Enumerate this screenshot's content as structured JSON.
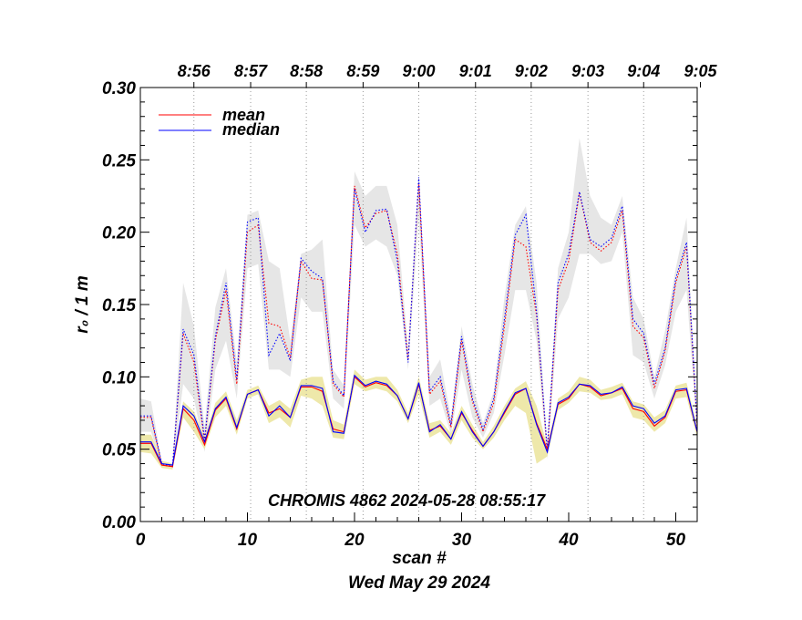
{
  "chart_data": {
    "type": "line",
    "title": "CHROMIS 4862 2024-05-28 08:55:17",
    "xlabel": "scan #",
    "xlabel2": "Wed May 29 2024",
    "ylabel": "r₀ / 1 m",
    "xlim": [
      0,
      52
    ],
    "ylim": [
      0,
      0.3
    ],
    "x_ticks": [
      "0",
      "10",
      "20",
      "30",
      "40",
      "50"
    ],
    "y_ticks": [
      "0.00",
      "0.05",
      "0.10",
      "0.15",
      "0.20",
      "0.25",
      "0.30"
    ],
    "time_ticks": [
      {
        "scan": 5,
        "label": "8:56"
      },
      {
        "scan": 10.3,
        "label": "8:57"
      },
      {
        "scan": 15.5,
        "label": "8:58"
      },
      {
        "scan": 20.8,
        "label": "8:59"
      },
      {
        "scan": 26,
        "label": "9:00"
      },
      {
        "scan": 31.3,
        "label": "9:01"
      },
      {
        "scan": 36.5,
        "label": "9:02"
      },
      {
        "scan": 41.8,
        "label": "9:03"
      },
      {
        "scan": 47,
        "label": "9:04"
      },
      {
        "scan": 52.3,
        "label": "9:05"
      }
    ],
    "legend": [
      {
        "label": "mean",
        "color": "#ff0000"
      },
      {
        "label": "median",
        "color": "#0000ff"
      }
    ],
    "series": [
      {
        "name": "upper mean",
        "style": "dotted",
        "color": "#ff0000",
        "values": [
          0.072,
          0.072,
          0.039,
          0.038,
          0.13,
          0.11,
          0.055,
          0.125,
          0.16,
          0.095,
          0.2,
          0.205,
          0.137,
          0.135,
          0.113,
          0.18,
          0.168,
          0.167,
          0.095,
          0.086,
          0.232,
          0.203,
          0.213,
          0.215,
          0.185,
          0.112,
          0.234,
          0.088,
          0.097,
          0.065,
          0.125,
          0.083,
          0.062,
          0.082,
          0.135,
          0.195,
          0.19,
          0.142,
          0.048,
          0.16,
          0.18,
          0.227,
          0.193,
          0.187,
          0.193,
          0.215,
          0.135,
          0.127,
          0.092,
          0.118,
          0.165,
          0.19,
          0.065
        ]
      },
      {
        "name": "upper median",
        "style": "dotted",
        "color": "#0000ff",
        "values": [
          0.073,
          0.073,
          0.04,
          0.038,
          0.133,
          0.115,
          0.057,
          0.128,
          0.165,
          0.098,
          0.207,
          0.21,
          0.115,
          0.13,
          0.111,
          0.182,
          0.173,
          0.168,
          0.097,
          0.087,
          0.23,
          0.2,
          0.215,
          0.216,
          0.18,
          0.11,
          0.238,
          0.09,
          0.1,
          0.067,
          0.128,
          0.085,
          0.064,
          0.085,
          0.14,
          0.198,
          0.212,
          0.145,
          0.05,
          0.165,
          0.185,
          0.228,
          0.195,
          0.19,
          0.196,
          0.218,
          0.14,
          0.13,
          0.095,
          0.12,
          0.168,
          0.193,
          0.067
        ]
      },
      {
        "name": "lower mean",
        "style": "solid",
        "color": "#ff0000",
        "values": [
          0.054,
          0.054,
          0.039,
          0.038,
          0.078,
          0.07,
          0.053,
          0.077,
          0.085,
          0.064,
          0.088,
          0.091,
          0.075,
          0.078,
          0.072,
          0.093,
          0.093,
          0.09,
          0.064,
          0.062,
          0.1,
          0.093,
          0.096,
          0.094,
          0.087,
          0.071,
          0.095,
          0.063,
          0.066,
          0.057,
          0.075,
          0.063,
          0.052,
          0.062,
          0.075,
          0.088,
          0.092,
          0.068,
          0.05,
          0.081,
          0.085,
          0.095,
          0.093,
          0.087,
          0.089,
          0.092,
          0.078,
          0.076,
          0.066,
          0.072,
          0.09,
          0.091,
          0.062
        ]
      },
      {
        "name": "lower median",
        "style": "solid",
        "color": "#0000ff",
        "values": [
          0.055,
          0.055,
          0.04,
          0.039,
          0.08,
          0.073,
          0.055,
          0.078,
          0.086,
          0.065,
          0.088,
          0.091,
          0.073,
          0.08,
          0.072,
          0.094,
          0.094,
          0.092,
          0.062,
          0.061,
          0.101,
          0.094,
          0.097,
          0.095,
          0.087,
          0.071,
          0.096,
          0.062,
          0.067,
          0.057,
          0.076,
          0.062,
          0.052,
          0.062,
          0.076,
          0.089,
          0.092,
          0.067,
          0.048,
          0.082,
          0.086,
          0.095,
          0.094,
          0.088,
          0.089,
          0.093,
          0.08,
          0.078,
          0.068,
          0.073,
          0.091,
          0.092,
          0.062
        ]
      }
    ],
    "bands": [
      {
        "name": "upper spread",
        "color": "#e6e6e6",
        "lower": [
          0.062,
          0.062,
          0.038,
          0.036,
          0.095,
          0.085,
          0.048,
          0.105,
          0.125,
          0.085,
          0.175,
          0.178,
          0.105,
          0.105,
          0.1,
          0.155,
          0.145,
          0.145,
          0.085,
          0.078,
          0.205,
          0.19,
          0.195,
          0.19,
          0.17,
          0.105,
          0.21,
          0.08,
          0.085,
          0.06,
          0.105,
          0.072,
          0.058,
          0.075,
          0.115,
          0.16,
          0.16,
          0.125,
          0.043,
          0.14,
          0.155,
          0.185,
          0.185,
          0.178,
          0.18,
          0.2,
          0.115,
          0.11,
          0.085,
          0.108,
          0.145,
          0.16,
          0.062
        ],
        "upper": [
          0.085,
          0.083,
          0.042,
          0.04,
          0.165,
          0.135,
          0.065,
          0.148,
          0.175,
          0.11,
          0.212,
          0.215,
          0.18,
          0.175,
          0.125,
          0.185,
          0.188,
          0.195,
          0.105,
          0.094,
          0.242,
          0.225,
          0.232,
          0.232,
          0.205,
          0.12,
          0.24,
          0.1,
          0.112,
          0.072,
          0.135,
          0.095,
          0.068,
          0.09,
          0.155,
          0.205,
          0.218,
          0.165,
          0.052,
          0.175,
          0.2,
          0.265,
          0.225,
          0.21,
          0.205,
          0.225,
          0.155,
          0.14,
          0.1,
          0.132,
          0.175,
          0.21,
          0.07
        ]
      },
      {
        "name": "lower spread",
        "color": "#eee8aa",
        "lower": [
          0.048,
          0.047,
          0.037,
          0.036,
          0.072,
          0.062,
          0.05,
          0.072,
          0.08,
          0.06,
          0.085,
          0.088,
          0.068,
          0.072,
          0.065,
          0.087,
          0.085,
          0.08,
          0.058,
          0.057,
          0.095,
          0.09,
          0.092,
          0.09,
          0.083,
          0.068,
          0.088,
          0.058,
          0.062,
          0.053,
          0.07,
          0.058,
          0.05,
          0.058,
          0.07,
          0.08,
          0.075,
          0.04,
          0.045,
          0.077,
          0.082,
          0.09,
          0.089,
          0.084,
          0.085,
          0.088,
          0.072,
          0.07,
          0.062,
          0.068,
          0.085,
          0.086,
          0.058
        ],
        "upper": [
          0.06,
          0.06,
          0.042,
          0.04,
          0.083,
          0.076,
          0.058,
          0.082,
          0.09,
          0.07,
          0.091,
          0.094,
          0.08,
          0.084,
          0.078,
          0.098,
          0.1,
          0.1,
          0.07,
          0.067,
          0.105,
          0.098,
          0.1,
          0.1,
          0.091,
          0.075,
          0.1,
          0.068,
          0.07,
          0.061,
          0.08,
          0.067,
          0.055,
          0.066,
          0.08,
          0.092,
          0.097,
          0.08,
          0.052,
          0.085,
          0.09,
          0.1,
          0.098,
          0.091,
          0.093,
          0.096,
          0.083,
          0.081,
          0.072,
          0.077,
          0.094,
          0.096,
          0.066
        ]
      }
    ]
  }
}
